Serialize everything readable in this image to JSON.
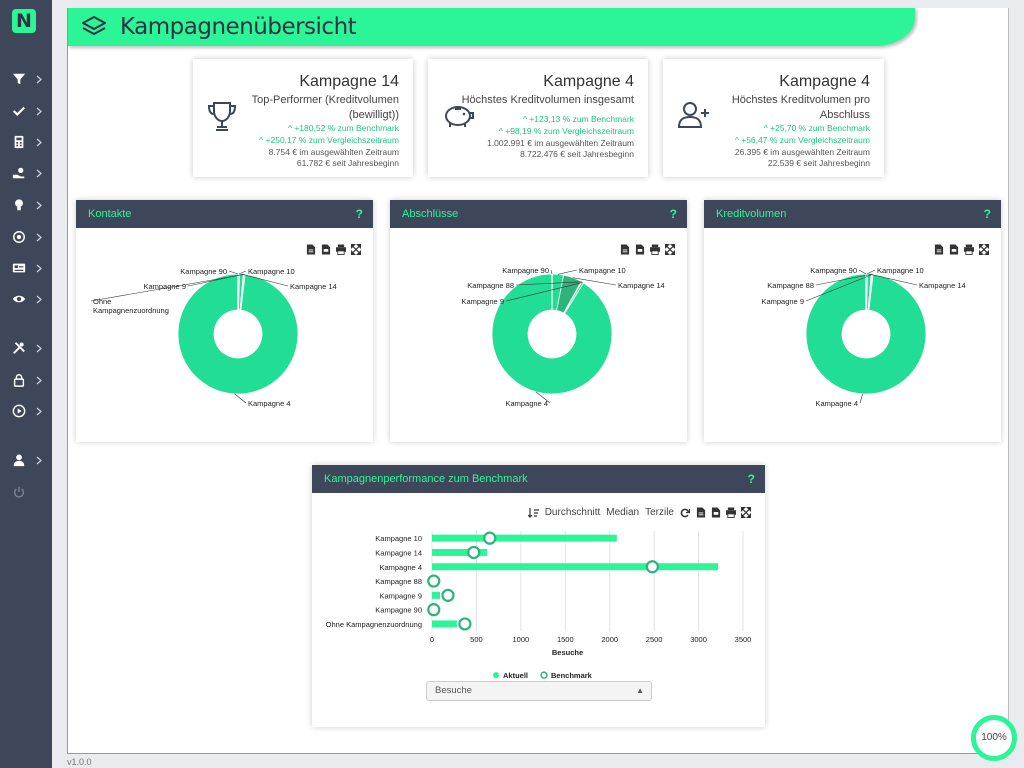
{
  "app": {
    "logo_letter": "N",
    "version": "v1.0.0",
    "zoom": "100%"
  },
  "sidebar": {
    "items": [
      {
        "icon": "filter-icon",
        "chevron": true
      },
      {
        "icon": "check-icon",
        "chevron": true
      },
      {
        "icon": "calculator-icon",
        "chevron": true
      },
      {
        "icon": "hand-coins-icon",
        "chevron": true
      },
      {
        "icon": "lightbulb-icon",
        "chevron": true
      },
      {
        "icon": "target-icon",
        "chevron": true
      },
      {
        "icon": "id-card-icon",
        "chevron": true
      },
      {
        "icon": "eye-icon",
        "chevron": true
      },
      {
        "icon": "tools-icon",
        "chevron": true
      },
      {
        "icon": "lock-icon",
        "chevron": true
      },
      {
        "icon": "play-icon",
        "chevron": true
      },
      {
        "icon": "user-icon",
        "chevron": true
      },
      {
        "icon": "power-icon",
        "chevron": false
      }
    ]
  },
  "header": {
    "title": "Kampagnenübersicht",
    "icon": "layers-icon"
  },
  "kpis": [
    {
      "title": "Kampagne 14",
      "subtitle": "Top-Performer (Kreditvolumen (bewilligt))",
      "icon": "trophy-icon",
      "benchmark": "^ +180,52 % zum Benchmark",
      "compare": "^ +250,17 % zum Vergleichszeitraum",
      "period": "8.754 € im ausgewählten Zeitraum",
      "ytd": "61.782 € seit Jahresbeginn"
    },
    {
      "title": "Kampagne 4",
      "subtitle": "Höchstes Kreditvolumen insgesamt",
      "icon": "piggy-bank-icon",
      "benchmark": "^ +123,13 % zum Benchmark",
      "compare": "^ +98,19 % zum Vergleichszeitraum",
      "period": "1.002.991 € im ausgewählten Zeitraum",
      "ytd": "8.722.476 € seit Jahresbeginn"
    },
    {
      "title": "Kampagne 4",
      "subtitle": "Höchstes Kreditvolumen pro Abschluss",
      "icon": "user-plus-icon",
      "benchmark": "^ +25,70 % zum Benchmark",
      "compare": "^ +56,47 % zum Vergleichszeitraum",
      "period": "26.395 € im ausgewählten Zeitraum",
      "ytd": "22.539 € seit Jahresbeginn"
    }
  ],
  "tools": [
    "csv-export-icon",
    "pdf-export-icon",
    "print-icon",
    "expand-icon"
  ],
  "colors": {
    "accent": "#2cf598",
    "sidebar": "#3e475a",
    "pie_main": "#22dd96",
    "pie_alt": "#2eb47b"
  },
  "benchmark_panel": {
    "title": "Kampagnenperformance zum Benchmark",
    "toolbar": {
      "durchschnitt": "Durchschnitt",
      "median": "Median",
      "terzile": "Terzile"
    },
    "select_value": "Besuche"
  },
  "chart_data": [
    {
      "type": "pie",
      "title": "Kontakte",
      "help": "?",
      "labels": [
        "Kampagne 90",
        "Kampagne 10",
        "Kampagne 14",
        "Kampagne 9",
        "Ohne Kampagnenzuordnung",
        "Kampagne 4"
      ],
      "values": [
        0.2,
        0.3,
        1.0,
        0.2,
        0.3,
        98.0
      ]
    },
    {
      "type": "pie",
      "title": "Abschlüsse",
      "help": "?",
      "labels": [
        "Kampagne 90",
        "Kampagne 10",
        "Kampagne 14",
        "Kampagne 88",
        "Kampagne 9",
        "Kampagne 4"
      ],
      "values": [
        0.2,
        3.0,
        5.0,
        0.2,
        0.5,
        91.1
      ]
    },
    {
      "type": "pie",
      "title": "Kreditvolumen",
      "help": "?",
      "labels": [
        "Kampagne 90",
        "Kampagne 10",
        "Kampagne 14",
        "Kampagne 88",
        "Kampagne 9",
        "Kampagne 4"
      ],
      "values": [
        0.2,
        0.3,
        1.0,
        0.2,
        0.3,
        98.0
      ]
    },
    {
      "type": "bar",
      "categories": [
        "Kampagne 10",
        "Kampagne 14",
        "Kampagne 4",
        "Kampagne 88",
        "Kampagne 9",
        "Kampagne 90",
        "Ohne Kampagnenzuordnung"
      ],
      "series": [
        {
          "name": "Aktuell",
          "values": [
            2080,
            620,
            3220,
            0,
            90,
            0,
            280
          ]
        },
        {
          "name": "Benchmark",
          "values": [
            650,
            470,
            2480,
            20,
            180,
            20,
            370
          ]
        }
      ],
      "xlabel": "Besuche",
      "xlim": [
        0,
        3500
      ],
      "xticks": [
        0,
        500,
        1000,
        1500,
        2000,
        2500,
        3000,
        3500
      ],
      "legend": "bottom"
    }
  ]
}
